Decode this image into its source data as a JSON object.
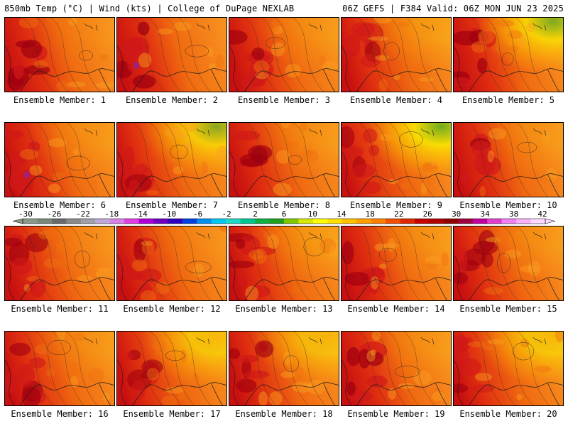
{
  "header": {
    "left": "850mb Temp (°C) | Wind (kts) | College of DuPage NEXLAB",
    "right": "06Z GEFS | F384 Valid: 06Z MON JUN 23 2025"
  },
  "members": [
    {
      "label": "Ensemble Member: 1",
      "hot": 0.85,
      "cool": 0.05,
      "gradient": "west"
    },
    {
      "label": "Ensemble Member: 2",
      "hot": 0.95,
      "cool": 0.0,
      "gradient": "west"
    },
    {
      "label": "Ensemble Member: 3",
      "hot": 0.75,
      "cool": 0.1,
      "gradient": "west"
    },
    {
      "label": "Ensemble Member: 4",
      "hot": 0.6,
      "cool": 0.15,
      "gradient": "west"
    },
    {
      "label": "Ensemble Member: 5",
      "hot": 0.85,
      "cool": 0.5,
      "gradient": "northeast-cool"
    },
    {
      "label": "Ensemble Member: 6",
      "hot": 0.9,
      "cool": 0.1,
      "gradient": "west"
    },
    {
      "label": "Ensemble Member: 7",
      "hot": 0.6,
      "cool": 0.45,
      "gradient": "east-cool"
    },
    {
      "label": "Ensemble Member: 8",
      "hot": 0.75,
      "cool": 0.1,
      "gradient": "west"
    },
    {
      "label": "Ensemble Member: 9",
      "hot": 0.55,
      "cool": 0.55,
      "gradient": "northeast-cool"
    },
    {
      "label": "Ensemble Member: 10",
      "hot": 0.85,
      "cool": 0.1,
      "gradient": "west"
    },
    {
      "label": "Ensemble Member: 11",
      "hot": 0.7,
      "cool": 0.05,
      "gradient": "west"
    },
    {
      "label": "Ensemble Member: 12",
      "hot": 0.7,
      "cool": 0.05,
      "gradient": "west"
    },
    {
      "label": "Ensemble Member: 13",
      "hot": 0.7,
      "cool": 0.15,
      "gradient": "west"
    },
    {
      "label": "Ensemble Member: 14",
      "hot": 0.8,
      "cool": 0.1,
      "gradient": "west"
    },
    {
      "label": "Ensemble Member: 15",
      "hot": 0.65,
      "cool": 0.1,
      "gradient": "west"
    },
    {
      "label": "Ensemble Member: 16",
      "hot": 0.65,
      "cool": 0.1,
      "gradient": "west"
    },
    {
      "label": "Ensemble Member: 17",
      "hot": 0.6,
      "cool": 0.4,
      "gradient": "northeast-cool"
    },
    {
      "label": "Ensemble Member: 18",
      "hot": 0.7,
      "cool": 0.35,
      "gradient": "northeast-cool"
    },
    {
      "label": "Ensemble Member: 19",
      "hot": 0.85,
      "cool": 0.1,
      "gradient": "west"
    },
    {
      "label": "Ensemble Member: 20",
      "hot": 0.55,
      "cool": 0.4,
      "gradient": "northeast-cool"
    }
  ],
  "colorbar": {
    "ticks": [
      "-30",
      "-26",
      "-22",
      "-18",
      "-14",
      "-10",
      "-6",
      "-2",
      "2",
      "6",
      "10",
      "14",
      "18",
      "22",
      "26",
      "30",
      "34",
      "38",
      "42"
    ],
    "colors": [
      "#8a9a8a",
      "#7a8a7a",
      "#6a6a6a",
      "#8a8a8a",
      "#a0a0a8",
      "#c0a8d8",
      "#d880e8",
      "#e040e0",
      "#b000d8",
      "#7000c0",
      "#3000c0",
      "#0040e0",
      "#0090f0",
      "#00c8f0",
      "#20d8c8",
      "#00c890",
      "#10b040",
      "#20a020",
      "#80c800",
      "#d8e800",
      "#ffff00",
      "#ffe000",
      "#ffc000",
      "#ffa000",
      "#ff8000",
      "#f05000",
      "#e02800",
      "#c80000",
      "#b00000",
      "#900000",
      "#a00040",
      "#c000a0",
      "#e040d0",
      "#f080f0",
      "#f8b0f8",
      "#ffd8ff"
    ]
  }
}
